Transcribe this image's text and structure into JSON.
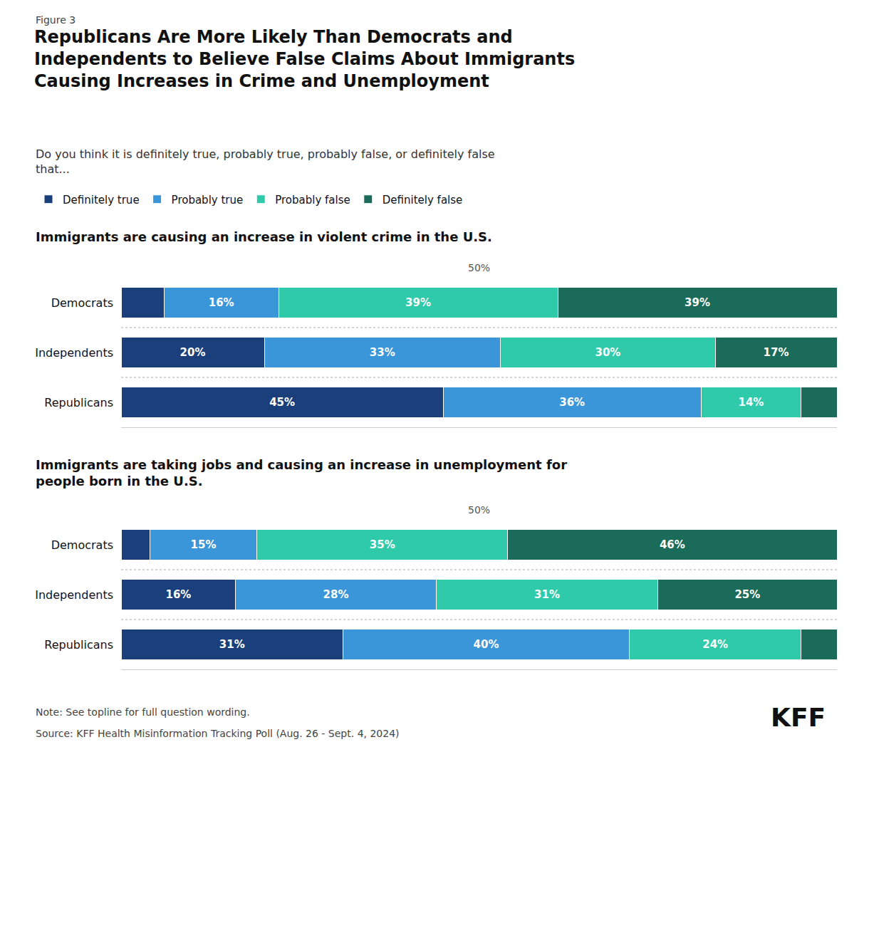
{
  "title": "Republicans Are More Likely Than Democrats and\nIndependents to Believe False Claims About Immigrants\nCausing Increases in Crime and Unemployment",
  "subtitle": "Do you think it is definitely true, probably true, probably false, or definitely false\nthat...",
  "annotations": [
    "Figure 3",
    "Note: See topline for full question wording.",
    "Source: KFF Health Misinformation Tracking Poll (Aug. 26 - Sept. 4, 2024)",
    "KFF"
  ],
  "legend": "top",
  "chart_data": [
    {
      "type": "bar",
      "orientation": "horizontal",
      "stacked": true,
      "data_labels": true,
      "tick_labels": "y",
      "grid": false,
      "title": "Immigrants are causing an increase in violent crime in the U.S.",
      "categories": [
        "Democrats",
        "Independents",
        "Republicans"
      ],
      "xlim": [
        0,
        100
      ],
      "xticks": [],
      "annotations": [
        {
          "x": 50,
          "text": "50%"
        }
      ],
      "series": [
        {
          "name": "Definitely true",
          "color": "#1b3f7a",
          "values": [
            6,
            20,
            45
          ],
          "value_labels": [
            null,
            "20%",
            "45%"
          ]
        },
        {
          "name": "Probably true",
          "color": "#3a96d8",
          "values": [
            16,
            33,
            36
          ],
          "value_labels": [
            "16%",
            "33%",
            "36%"
          ]
        },
        {
          "name": "Probably false",
          "color": "#2ecaaa",
          "values": [
            39,
            30,
            14
          ],
          "value_labels": [
            "39%",
            "30%",
            "14%"
          ]
        },
        {
          "name": "Definitely false",
          "color": "#1a6b5a",
          "values": [
            39,
            17,
            5
          ],
          "value_labels": [
            "39%",
            "17%",
            null
          ]
        }
      ]
    },
    {
      "type": "bar",
      "orientation": "horizontal",
      "stacked": true,
      "data_labels": true,
      "tick_labels": "y",
      "grid": false,
      "title": "Immigrants are taking jobs and causing an increase in unemployment for\npeople born in the U.S.",
      "categories": [
        "Democrats",
        "Independents",
        "Republicans"
      ],
      "xlim": [
        0,
        100
      ],
      "xticks": [],
      "annotations": [
        {
          "x": 50,
          "text": "50%"
        }
      ],
      "series": [
        {
          "name": "Definitely true",
          "color": "#1b3f7a",
          "values": [
            4,
            16,
            31
          ],
          "value_labels": [
            null,
            "16%",
            "31%"
          ]
        },
        {
          "name": "Probably true",
          "color": "#3a96d8",
          "values": [
            15,
            28,
            40
          ],
          "value_labels": [
            "15%",
            "28%",
            "40%"
          ]
        },
        {
          "name": "Probably false",
          "color": "#2ecaaa",
          "values": [
            35,
            31,
            24
          ],
          "value_labels": [
            "35%",
            "31%",
            "24%"
          ]
        },
        {
          "name": "Definitely false",
          "color": "#1a6b5a",
          "values": [
            46,
            25,
            5
          ],
          "value_labels": [
            "46%",
            "25%",
            null
          ]
        }
      ]
    }
  ]
}
